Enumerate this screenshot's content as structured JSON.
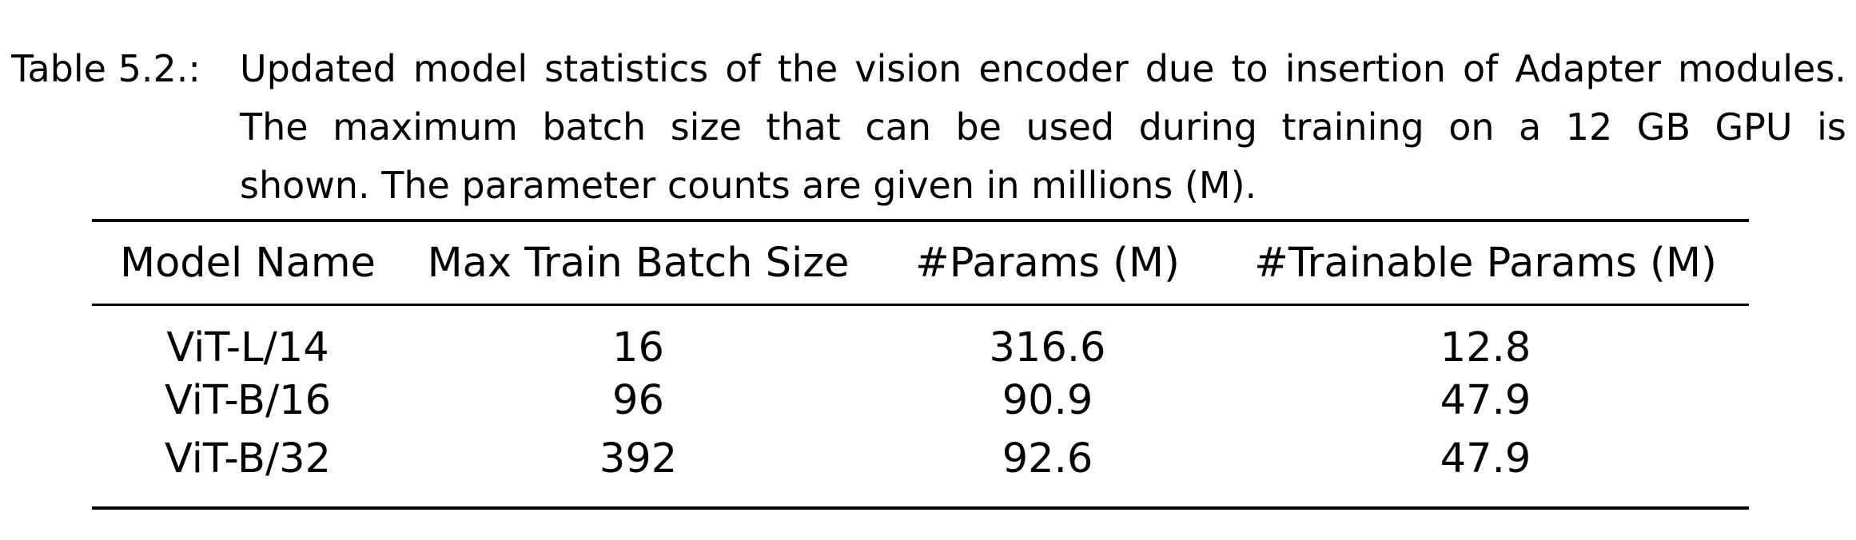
{
  "caption": {
    "label": "Table 5.2.:",
    "lines": [
      "Updated model statistics of the vision encoder due to insertion of Adapter modules.",
      "The maximum batch size that can be used during training on a 12 GB GPU is",
      "shown.  The parameter counts are given in millions (M)."
    ]
  },
  "table": {
    "headers": [
      "Model Name",
      "Max Train Batch Size",
      "#Params (M)",
      "#Trainable Params (M)"
    ],
    "rows": [
      [
        "ViT-L/14",
        "16",
        "316.6",
        "12.8"
      ],
      [
        "ViT-B/16",
        "96",
        "90.9",
        "47.9"
      ],
      [
        "ViT-B/32",
        "392",
        "92.6",
        "47.9"
      ]
    ]
  }
}
